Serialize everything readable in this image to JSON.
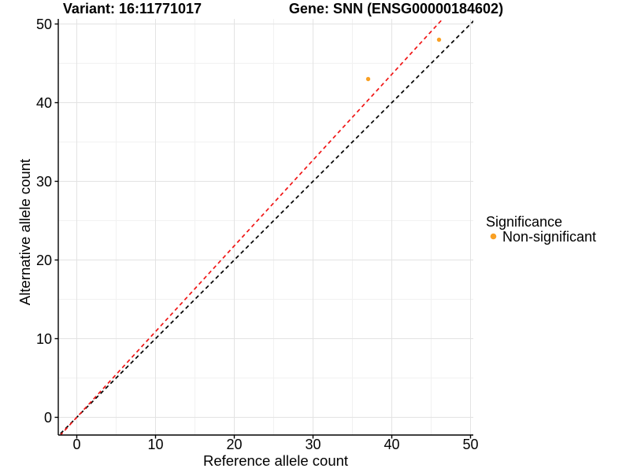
{
  "header": {
    "title_left": "Variant: 16:11771017",
    "title_right": "Gene: SNN (ENSG00000184602)"
  },
  "chart_data": {
    "type": "scatter",
    "title_left": "Variant: 16:11771017",
    "title_right": "Gene: SNN (ENSG00000184602)",
    "xlabel": "Reference allele count",
    "ylabel": "Alternative allele count",
    "xlim": [
      -2.35,
      50.35
    ],
    "ylim": [
      -2.25,
      50.65
    ],
    "x_ticks": [
      0,
      10,
      20,
      30,
      40,
      50
    ],
    "y_ticks": [
      0,
      10,
      20,
      30,
      40,
      50
    ],
    "grid": {
      "major_every": 10,
      "minor_every": 5,
      "major_color": "#e3e3e3",
      "minor_color": "#f1f1f1"
    },
    "points": [
      {
        "x": 37,
        "y": 43,
        "series": "Non-significant"
      },
      {
        "x": 46,
        "y": 48,
        "series": "Non-significant"
      }
    ],
    "point_color": "#F9A023",
    "lines": [
      {
        "name": "identity-line",
        "slope": 1.0,
        "intercept": 0,
        "color": "#000000",
        "style": "dashed"
      },
      {
        "name": "fit-line",
        "slope": 1.09,
        "intercept": 0,
        "color": "#F01414",
        "style": "dashed"
      }
    ]
  },
  "legend": {
    "title": "Significance",
    "items": [
      {
        "label": "Non-significant",
        "color": "#F9A023"
      }
    ]
  }
}
